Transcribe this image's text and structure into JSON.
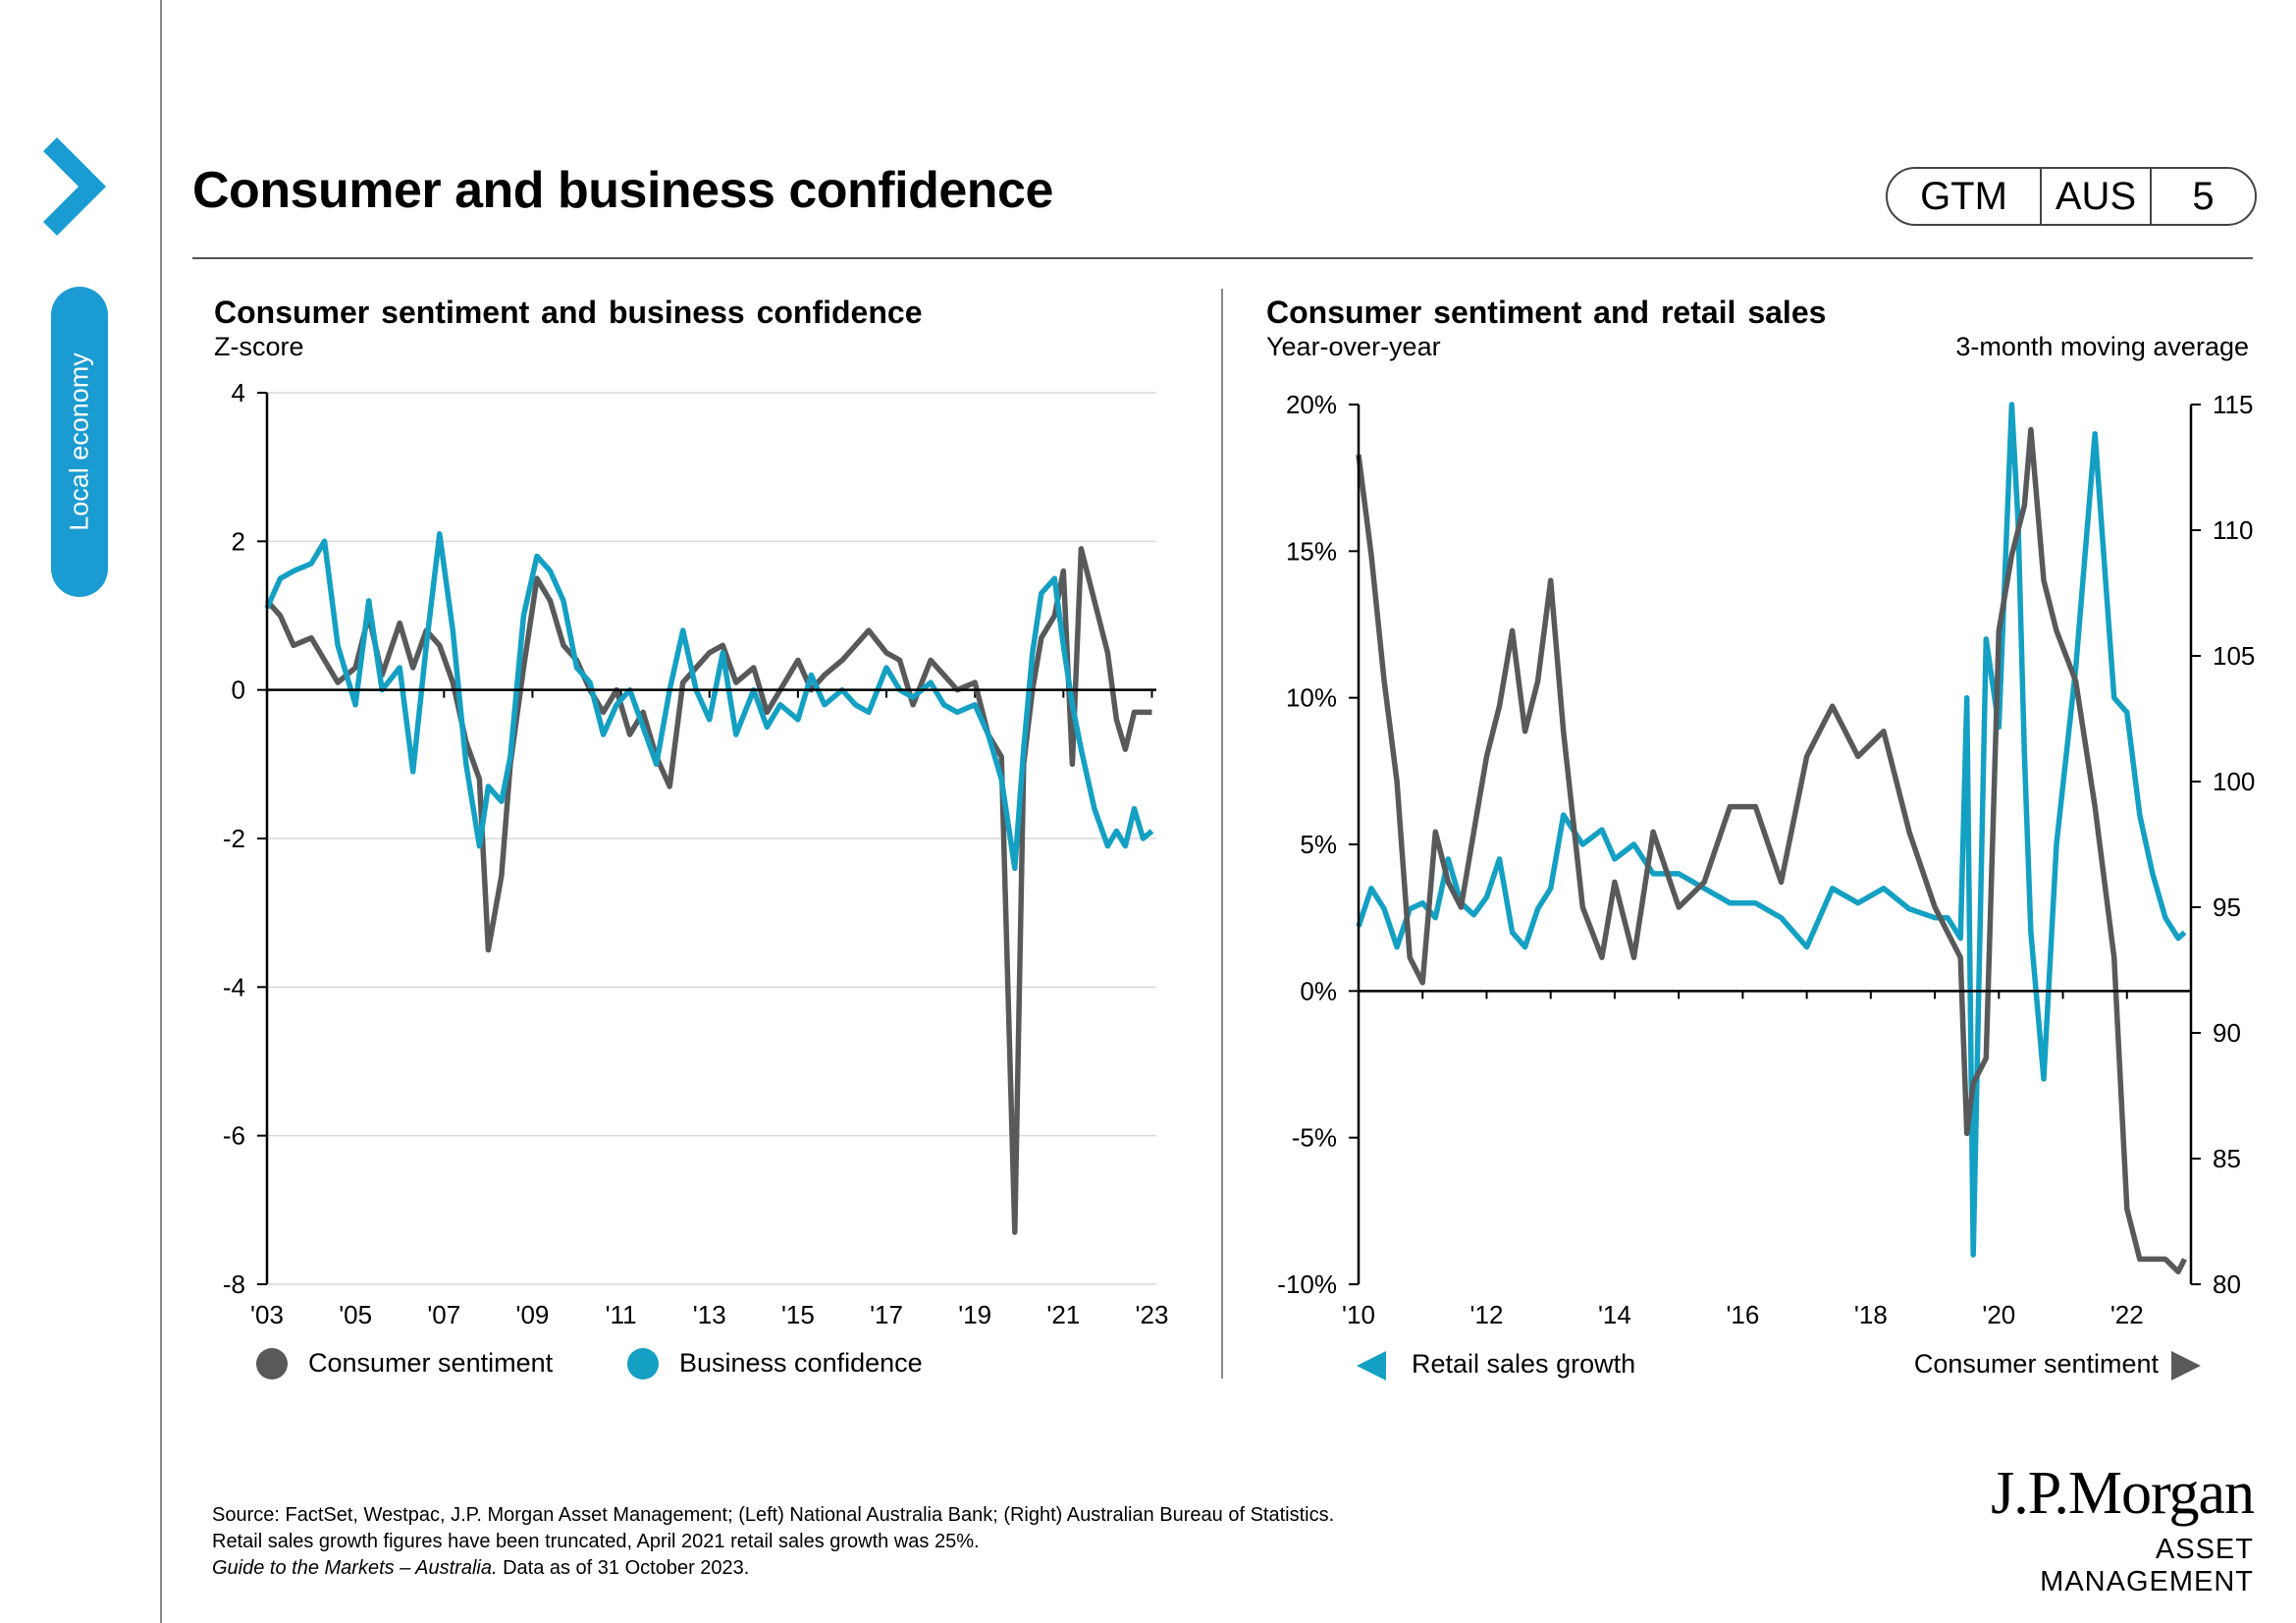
{
  "page": {
    "title": "Consumer and business confidence",
    "side_tab": "Local economy",
    "badge": {
      "a": "GTM",
      "b": "AUS",
      "c": "5"
    },
    "colors": {
      "accent": "#1a9bd1",
      "teal": "#14a0c3",
      "grey": "#58595b"
    }
  },
  "chart_data": [
    {
      "type": "line",
      "title": "Consumer sentiment and business confidence",
      "subtitle": "Z-score",
      "ylim": [
        -8,
        4
      ],
      "yticks": [
        "4",
        "2",
        "0",
        "-2",
        "-4",
        "-6",
        "-8"
      ],
      "yticks_values": [
        4,
        2,
        0,
        -2,
        -4,
        -6,
        -8
      ],
      "xlim": [
        2003,
        2023.1
      ],
      "xticks": [
        "'03",
        "'05",
        "'07",
        "'09",
        "'11",
        "'13",
        "'15",
        "'17",
        "'19",
        "'21",
        "'23"
      ],
      "xticks_values": [
        2003,
        2005,
        2007,
        2009,
        2011,
        2013,
        2015,
        2017,
        2019,
        2021,
        2023
      ],
      "legend": [
        "Consumer sentiment",
        "Business confidence"
      ],
      "series": [
        {
          "name": "Consumer sentiment",
          "color": "#58595b",
          "x": [
            2003,
            2003.3,
            2003.6,
            2004,
            2004.3,
            2004.6,
            2005,
            2005.3,
            2005.6,
            2006,
            2006.3,
            2006.6,
            2006.9,
            2007.2,
            2007.5,
            2007.8,
            2008.0,
            2008.3,
            2008.5,
            2008.8,
            2009.1,
            2009.4,
            2009.7,
            2010,
            2010.3,
            2010.6,
            2010.9,
            2011.2,
            2011.5,
            2011.8,
            2012.1,
            2012.4,
            2012.7,
            2013,
            2013.3,
            2013.6,
            2014,
            2014.3,
            2014.6,
            2015,
            2015.3,
            2015.6,
            2016,
            2016.3,
            2016.6,
            2017,
            2017.3,
            2017.6,
            2018,
            2018.3,
            2018.6,
            2019,
            2019.3,
            2019.6,
            2019.9,
            2020.1,
            2020.3,
            2020.5,
            2020.8,
            2021.0,
            2021.2,
            2021.4,
            2021.7,
            2022.0,
            2022.2,
            2022.4,
            2022.6,
            2022.8,
            2023.0
          ],
          "values": [
            1.2,
            1.0,
            0.6,
            0.7,
            0.4,
            0.1,
            0.3,
            1.0,
            0.2,
            0.9,
            0.3,
            0.8,
            0.6,
            0.1,
            -0.7,
            -1.2,
            -3.5,
            -2.5,
            -1.0,
            0.3,
            1.5,
            1.2,
            0.6,
            0.4,
            0.0,
            -0.3,
            0.0,
            -0.6,
            -0.3,
            -0.9,
            -1.3,
            0.1,
            0.3,
            0.5,
            0.6,
            0.1,
            0.3,
            -0.3,
            0.0,
            0.4,
            0.0,
            0.2,
            0.4,
            0.6,
            0.8,
            0.5,
            0.4,
            -0.2,
            0.4,
            0.2,
            0.0,
            0.1,
            -0.6,
            -0.9,
            -7.3,
            -1.0,
            0.0,
            0.7,
            1.0,
            1.6,
            -1.0,
            1.9,
            1.2,
            0.5,
            -0.4,
            -0.8,
            -0.3,
            -0.3,
            -0.3
          ]
        },
        {
          "name": "Business confidence",
          "color": "#14a0c3",
          "x": [
            2003,
            2003.3,
            2003.6,
            2004,
            2004.3,
            2004.6,
            2005,
            2005.3,
            2005.6,
            2006,
            2006.3,
            2006.6,
            2006.9,
            2007.2,
            2007.5,
            2007.8,
            2008.0,
            2008.3,
            2008.5,
            2008.8,
            2009.1,
            2009.4,
            2009.7,
            2010,
            2010.3,
            2010.6,
            2010.9,
            2011.2,
            2011.5,
            2011.8,
            2012.1,
            2012.4,
            2012.7,
            2013,
            2013.3,
            2013.6,
            2014,
            2014.3,
            2014.6,
            2015,
            2015.3,
            2015.6,
            2016,
            2016.3,
            2016.6,
            2017,
            2017.3,
            2017.6,
            2018,
            2018.3,
            2018.6,
            2019,
            2019.3,
            2019.6,
            2019.9,
            2020.1,
            2020.3,
            2020.5,
            2020.8,
            2021.0,
            2021.2,
            2021.4,
            2021.7,
            2022.0,
            2022.2,
            2022.4,
            2022.6,
            2022.8,
            2023.0
          ],
          "values": [
            1.1,
            1.5,
            1.6,
            1.7,
            2.0,
            0.6,
            -0.2,
            1.2,
            0.0,
            0.3,
            -1.1,
            0.6,
            2.1,
            0.8,
            -1.0,
            -2.1,
            -1.3,
            -1.5,
            -0.9,
            1.0,
            1.8,
            1.6,
            1.2,
            0.3,
            0.1,
            -0.6,
            -0.2,
            0.0,
            -0.5,
            -1.0,
            0.0,
            0.8,
            0.0,
            -0.4,
            0.5,
            -0.6,
            0.0,
            -0.5,
            -0.2,
            -0.4,
            0.2,
            -0.2,
            0.0,
            -0.2,
            -0.3,
            0.3,
            0.0,
            -0.1,
            0.1,
            -0.2,
            -0.3,
            -0.2,
            -0.6,
            -1.2,
            -2.4,
            -0.8,
            0.5,
            1.3,
            1.5,
            0.6,
            -0.2,
            -0.8,
            -1.6,
            -2.1,
            -1.9,
            -2.1,
            -1.6,
            -2.0,
            -1.9
          ]
        }
      ]
    },
    {
      "type": "line",
      "title": "Consumer sentiment and retail sales",
      "subtitle": "Year-over-year",
      "subtitle_right": "3-month moving average",
      "ylim": [
        -10,
        20
      ],
      "yticks": [
        "20%",
        "15%",
        "10%",
        "5%",
        "0%",
        "-5%",
        "-10%"
      ],
      "yticks_values": [
        20,
        15,
        10,
        5,
        0,
        -5,
        -10
      ],
      "y2lim": [
        80,
        115
      ],
      "y2ticks": [
        "115",
        "110",
        "105",
        "100",
        "95",
        "90",
        "85",
        "80"
      ],
      "y2ticks_values": [
        115,
        110,
        105,
        100,
        95,
        90,
        85,
        80
      ],
      "xlim": [
        2010,
        2023
      ],
      "xticks": [
        "'10",
        "'12",
        "'14",
        "'16",
        "'18",
        "'20",
        "'22"
      ],
      "xticks_values": [
        2010,
        2012,
        2014,
        2016,
        2018,
        2020,
        2022
      ],
      "legend": [
        "Retail sales growth",
        "Consumer sentiment"
      ],
      "series": [
        {
          "name": "Retail sales growth",
          "axis": "left",
          "color": "#14a0c3",
          "x": [
            2010,
            2010.2,
            2010.4,
            2010.6,
            2010.8,
            2011.0,
            2011.2,
            2011.4,
            2011.6,
            2011.8,
            2012.0,
            2012.2,
            2012.4,
            2012.6,
            2012.8,
            2013.0,
            2013.2,
            2013.5,
            2013.8,
            2014.0,
            2014.3,
            2014.6,
            2015.0,
            2015.4,
            2015.8,
            2016.2,
            2016.6,
            2017.0,
            2017.4,
            2017.8,
            2018.2,
            2018.6,
            2019.0,
            2019.2,
            2019.4,
            2019.5,
            2019.6,
            2019.8,
            2020.0,
            2020.2,
            2020.3,
            2020.4,
            2020.5,
            2020.7,
            2020.9,
            2021.2,
            2021.5,
            2021.8,
            2022.0,
            2022.2,
            2022.4,
            2022.6,
            2022.8,
            2022.9
          ],
          "values": [
            2.2,
            3.5,
            2.8,
            1.5,
            2.8,
            3.0,
            2.5,
            4.5,
            3.0,
            2.6,
            3.2,
            4.5,
            2.0,
            1.5,
            2.8,
            3.5,
            6.0,
            5.0,
            5.5,
            4.5,
            5.0,
            4.0,
            4.0,
            3.5,
            3.0,
            3.0,
            2.5,
            1.5,
            3.5,
            3.0,
            3.5,
            2.8,
            2.5,
            2.5,
            1.8,
            10.0,
            -9.0,
            12.0,
            9.0,
            20.0,
            16.0,
            8.0,
            2.0,
            -3.0,
            5.0,
            11.0,
            19.0,
            10.0,
            9.5,
            6.0,
            4.0,
            2.5,
            1.8,
            2.0
          ]
        },
        {
          "name": "Consumer sentiment",
          "axis": "right",
          "color": "#58595b",
          "x": [
            2010,
            2010.2,
            2010.4,
            2010.6,
            2010.8,
            2011.0,
            2011.2,
            2011.4,
            2011.6,
            2011.8,
            2012.0,
            2012.2,
            2012.4,
            2012.6,
            2012.8,
            2013.0,
            2013.2,
            2013.5,
            2013.8,
            2014.0,
            2014.3,
            2014.6,
            2015.0,
            2015.4,
            2015.8,
            2016.2,
            2016.6,
            2017.0,
            2017.4,
            2017.8,
            2018.2,
            2018.6,
            2019.0,
            2019.2,
            2019.4,
            2019.5,
            2019.6,
            2019.8,
            2020.0,
            2020.2,
            2020.3,
            2020.4,
            2020.5,
            2020.7,
            2020.9,
            2021.2,
            2021.5,
            2021.8,
            2022.0,
            2022.2,
            2022.4,
            2022.6,
            2022.8,
            2022.9
          ],
          "values": [
            113,
            109,
            104,
            100,
            93,
            92,
            98,
            96,
            95,
            98,
            101,
            103,
            106,
            102,
            104,
            108,
            102,
            95,
            93,
            96,
            93,
            98,
            95,
            96,
            99,
            99,
            96,
            101,
            103,
            101,
            102,
            98,
            95,
            94,
            93,
            86,
            88,
            89,
            106,
            109,
            110,
            111,
            114,
            108,
            106,
            104,
            99,
            93,
            83,
            81,
            81,
            81,
            80.5,
            81
          ]
        }
      ]
    }
  ],
  "source": {
    "line1": "Source: FactSet, Westpac, J.P. Morgan Asset Management; (Left) National Australia Bank; (Right) Australian Bureau of Statistics.",
    "line2": "Retail sales growth figures have been truncated, April 2021 retail sales growth was 25%.",
    "line3_italic": "Guide to the Markets – Australia.",
    "line3_rest": " Data as of 31 October 2023."
  },
  "logo": {
    "name": "J.P.Morgan",
    "sub": "ASSET MANAGEMENT"
  }
}
